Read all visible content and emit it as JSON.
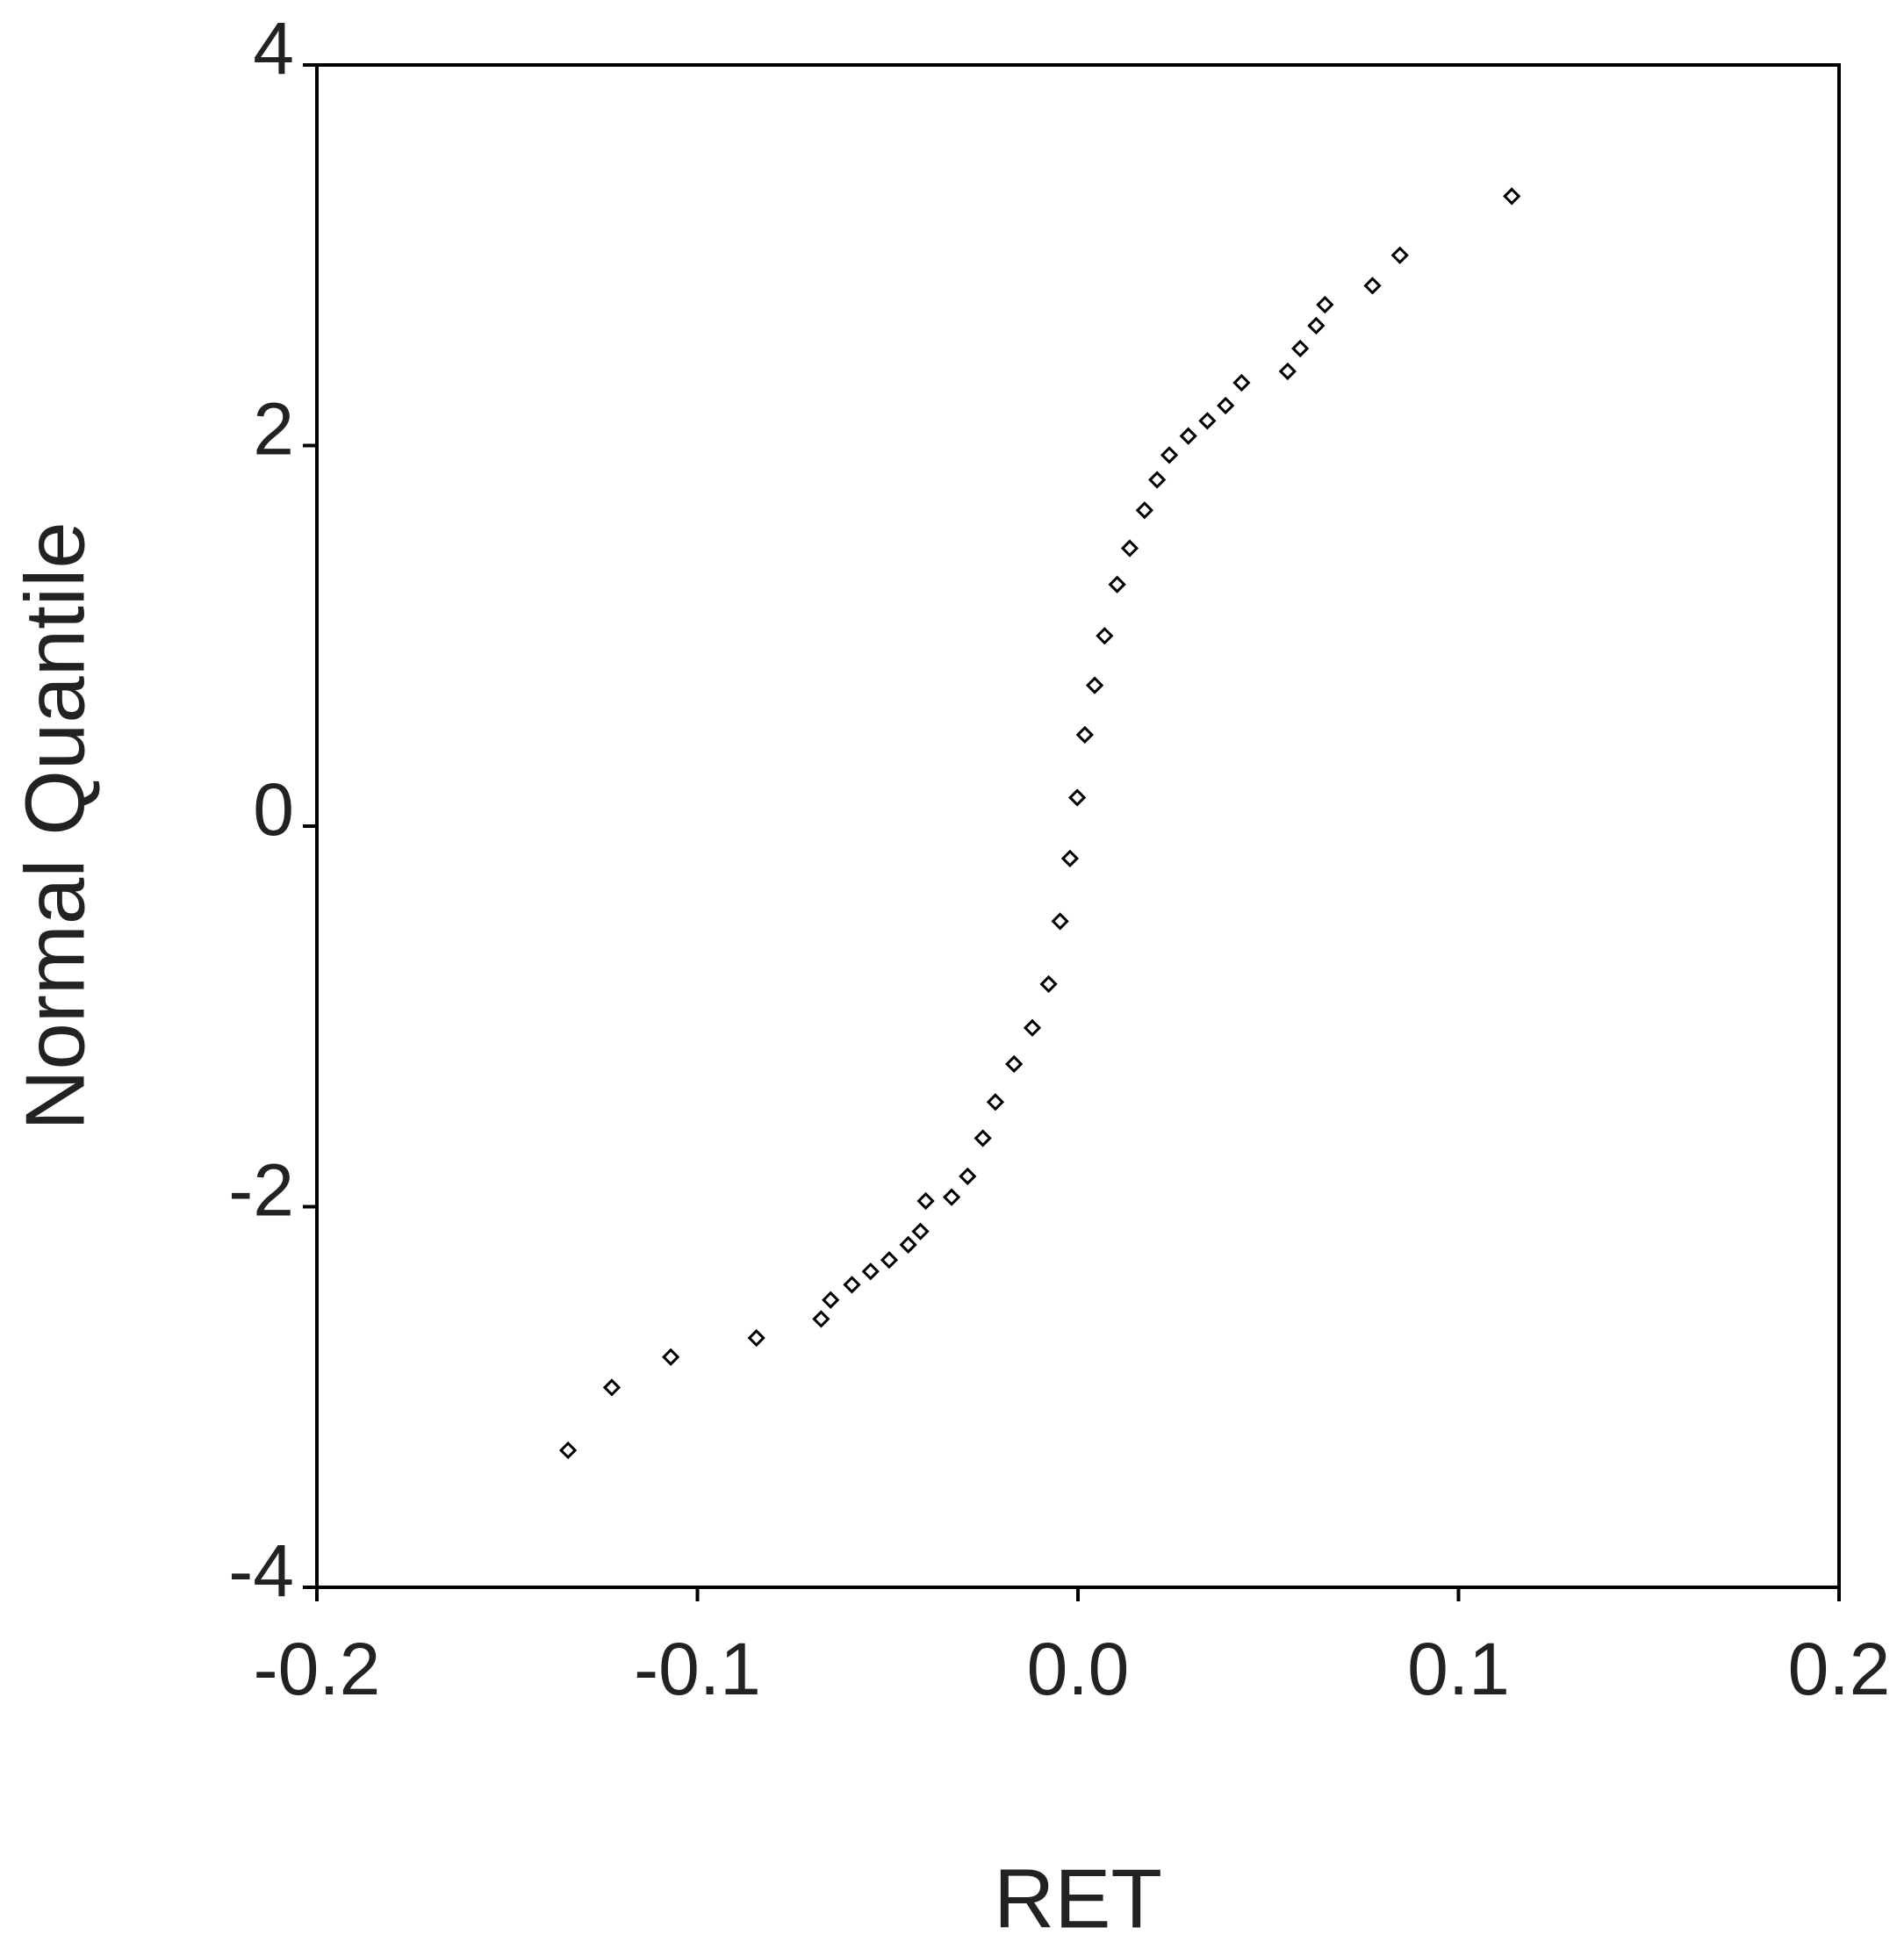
{
  "chart_data": {
    "type": "scatter",
    "x_label": "RET",
    "y_label": "Normal Quantile",
    "xlim": [
      -0.2,
      0.2
    ],
    "xticks": [
      -0.2,
      -0.1,
      {
        "value": 0,
        "label": "0.0"
      },
      0.1,
      0.2
    ],
    "ylim": [
      -4,
      4
    ],
    "yticks": [
      -4,
      -2,
      0,
      2,
      4
    ],
    "color": "#000000",
    "grid": false,
    "x": [
      -0.134,
      -0.1225,
      -0.107,
      -0.0845,
      -0.0675,
      -0.065,
      -0.0594,
      -0.0545,
      -0.0496,
      -0.0446,
      -0.0414,
      -0.04,
      -0.0332,
      -0.029,
      -0.025,
      -0.0217,
      -0.0168,
      -0.012,
      -0.0077,
      -0.0047,
      -0.0021,
      -0.0002,
      0.0018,
      0.0044,
      0.007,
      0.0103,
      0.0136,
      0.0175,
      0.0208,
      0.024,
      0.029,
      0.034,
      0.0388,
      0.043,
      0.0551,
      0.0584,
      0.0626,
      0.0649,
      0.0774,
      0.0846,
      0.114
    ],
    "y": [
      -3.28,
      -2.95,
      -2.79,
      -2.69,
      -2.59,
      -2.49,
      -2.41,
      -2.34,
      -2.28,
      -2.2,
      -2.13,
      -1.97,
      -1.95,
      -1.84,
      -1.64,
      -1.45,
      -1.25,
      -1.06,
      -0.83,
      -0.5,
      -0.17,
      0.15,
      0.48,
      0.74,
      1.0,
      1.27,
      1.46,
      1.66,
      1.82,
      1.95,
      2.05,
      2.13,
      2.21,
      2.33,
      2.39,
      2.51,
      2.63,
      2.74,
      2.84,
      3.0,
      3.31
    ]
  }
}
